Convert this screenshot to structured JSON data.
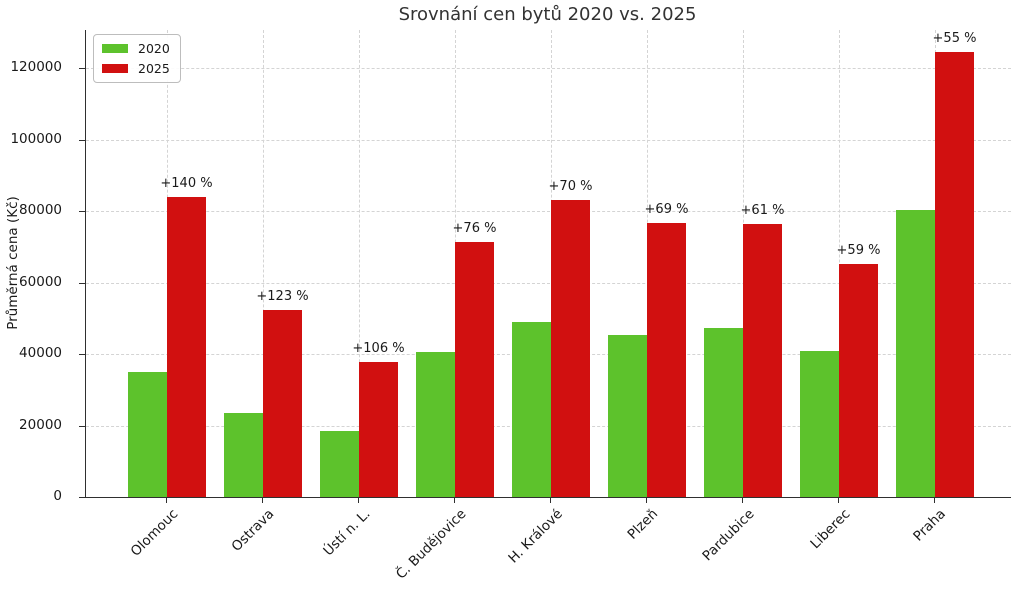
{
  "title": "Srovnání cen bytů 2020 vs. 2025",
  "ylabel": "Průměrná cena (Kč)",
  "colors": {
    "green_2020": "#5dc22c",
    "red_2025": "#d11010",
    "grid": "#d4d4d4",
    "spine": "#2f2f2f",
    "text": "#1a1a1a",
    "title_text": "#333333"
  },
  "legend": {
    "position": "upper left",
    "items": [
      {
        "label": "2020",
        "color": "#5dc22c"
      },
      {
        "label": "2025",
        "color": "#d11010"
      }
    ]
  },
  "chart_data": {
    "type": "bar",
    "title": "Srovnání cen bytů 2020 vs. 2025",
    "xlabel": "",
    "ylabel": "Průměrná cena (Kč)",
    "categories": [
      "Olomouc",
      "Ostrava",
      "Ústí n. L.",
      "Č. Budějovice",
      "H. Králové",
      "Plzeň",
      "Pardubice",
      "Liberec",
      "Praha"
    ],
    "series": [
      {
        "name": "2020",
        "color": "#5dc22c",
        "values": [
          35000,
          23500,
          18400,
          40600,
          48900,
          45400,
          47400,
          41000,
          80300
        ]
      },
      {
        "name": "2025",
        "color": "#d11010",
        "values": [
          84000,
          52400,
          37900,
          71500,
          83100,
          76700,
          76300,
          65200,
          124500
        ]
      }
    ],
    "annotations": [
      "+140 %",
      "+123 %",
      "+106 %",
      "+76 %",
      "+70 %",
      "+69 %",
      "+61 %",
      "+59 %",
      "+55 %"
    ],
    "yticks": [
      0,
      20000,
      40000,
      60000,
      80000,
      100000,
      120000
    ],
    "ylim": [
      0,
      130700
    ],
    "grid": true,
    "legend_position": "upper left"
  }
}
